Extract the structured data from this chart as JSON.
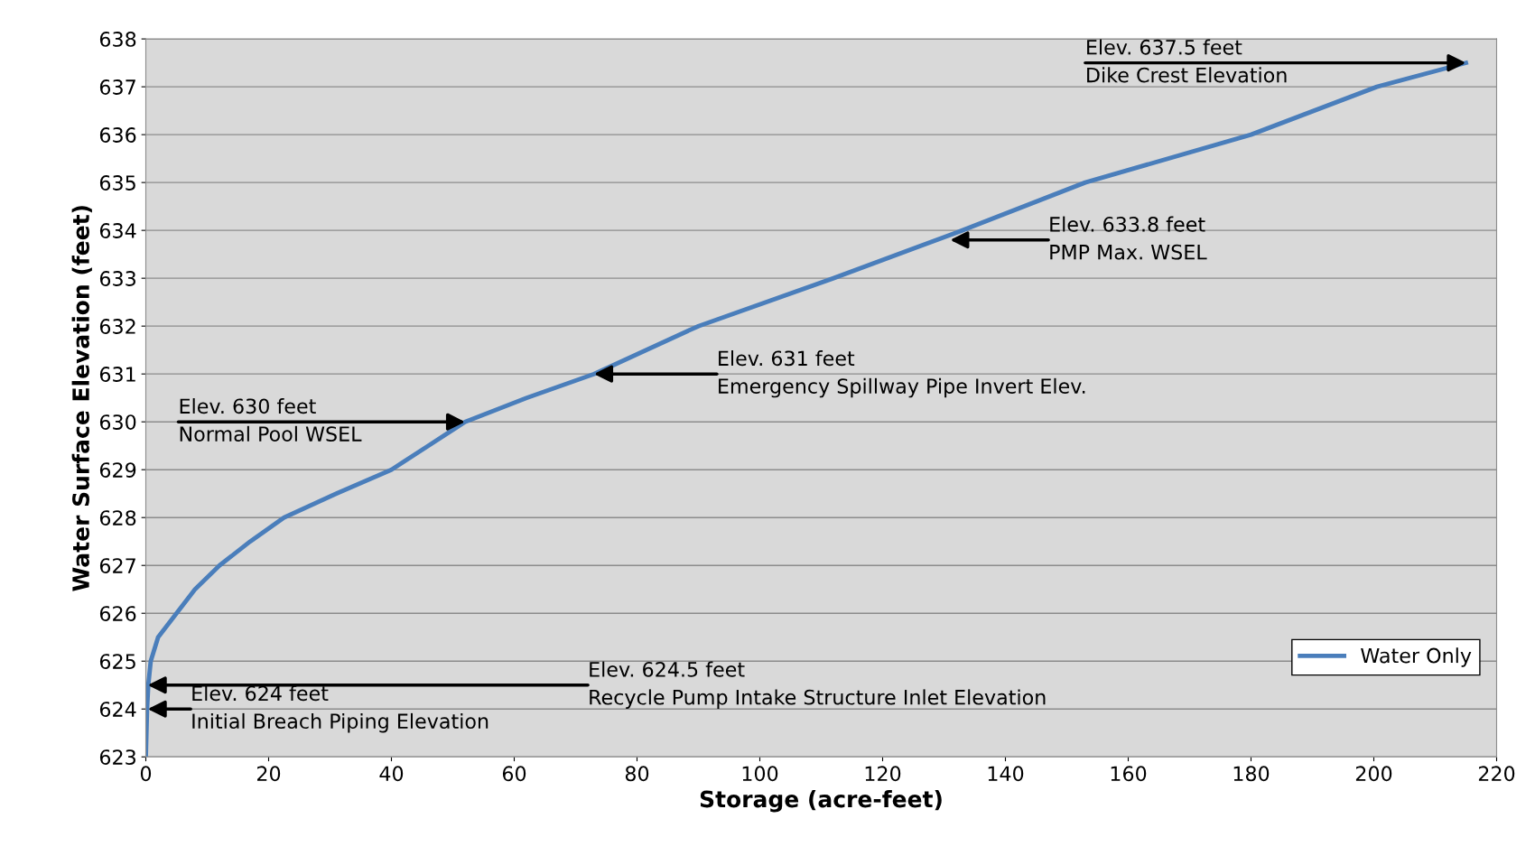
{
  "chart_data": {
    "type": "line",
    "xlabel": "Storage (acre-feet)",
    "ylabel": "Water Surface Elevation (feet)",
    "x": [
      0,
      0.2,
      0.4,
      0.8,
      2,
      5,
      8,
      12,
      17,
      22.5,
      31,
      40,
      46,
      52,
      62,
      73,
      90,
      112,
      133,
      153,
      180,
      200.5,
      215
    ],
    "series": [
      {
        "name": "Water Only",
        "color": "#4a7ebb",
        "values": [
          623,
          624,
          624.5,
          625,
          625.5,
          626,
          626.5,
          627,
          627.5,
          628,
          628.5,
          629,
          629.5,
          630,
          630.5,
          631,
          632,
          633,
          634,
          635,
          636,
          637,
          637.5
        ]
      }
    ],
    "xlim": [
      0,
      220
    ],
    "xticks": [
      0,
      20,
      40,
      60,
      80,
      100,
      120,
      140,
      160,
      180,
      200,
      220
    ],
    "ylim": [
      623,
      638
    ],
    "yticks": [
      623,
      624,
      625,
      626,
      627,
      628,
      629,
      630,
      631,
      632,
      633,
      634,
      635,
      636,
      637,
      638
    ],
    "grid": "y",
    "legend": "bottom right",
    "marker": "none",
    "line_style": "solid",
    "annotations": [
      {
        "text": "Elev. 637.5 feet\nDike Crest Elevation",
        "x": 215,
        "y": 637.5
      },
      {
        "text": "Elev. 633.8 feet\nPMP Max. WSEL",
        "x": 131,
        "y": 633.8
      },
      {
        "text": "Elev. 631 feet\nEmergency Spillway Pipe Invert Elev.",
        "x": 73,
        "y": 631
      },
      {
        "text": "Elev. 630 feet\nNormal Pool WSEL",
        "x": 52,
        "y": 630
      },
      {
        "text": "Elev. 624.5 feet\nRecycle Pump Intake Structure Inlet Elevation",
        "x": 0.3,
        "y": 624.5
      },
      {
        "text": "Elev. 624 feet\nInitial Breach Piping Elevation",
        "x": 0.3,
        "y": 624
      }
    ]
  }
}
